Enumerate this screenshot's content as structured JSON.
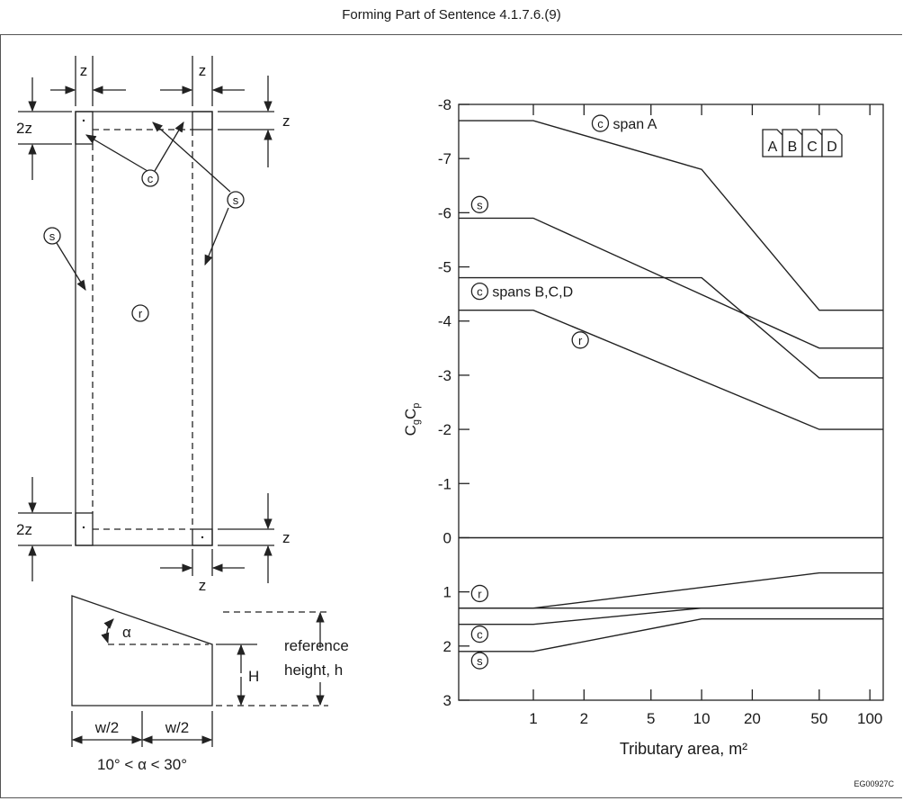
{
  "caption": "Forming Part of Sentence 4.1.7.6.(9)",
  "diagram": {
    "dim_z": "z",
    "dim_2z": "2z",
    "zone_c": "c",
    "zone_s": "s",
    "zone_r": "r",
    "alpha": "α",
    "dim_H": "H",
    "reference_height_line1": "reference",
    "reference_height_line2": "height, h",
    "half_width": "w/2",
    "angle_range": "10° < α < 30°"
  },
  "code": "EG00927C",
  "chart_data": {
    "type": "line",
    "ylabel_main": "C",
    "ylabel_sub1": "g",
    "ylabel_mid": "C",
    "ylabel_sub2": "p",
    "xlabel": "Tributary area, m²",
    "x_scale": "log",
    "xlim": [
      0.36,
      120
    ],
    "ylim": [
      3,
      -8
    ],
    "x_ticks": [
      1,
      2,
      5,
      10,
      20,
      50,
      100
    ],
    "x_tick_labels": [
      "1",
      "2",
      "5",
      "10",
      "20",
      "50",
      "100"
    ],
    "y_ticks": [
      -8,
      -7,
      -6,
      -5,
      -4,
      -3,
      -2,
      -1,
      0,
      1,
      2,
      3
    ],
    "y_tick_labels": [
      "-8",
      "-7",
      "-6",
      "-5",
      "-4",
      "-3",
      "-2",
      "-1",
      "0",
      "1",
      "2",
      "3"
    ],
    "span_boxes": [
      "A",
      "B",
      "C",
      "D"
    ],
    "series": [
      {
        "x": [
          0.36,
          1,
          10,
          50,
          120
        ],
        "y": [
          -7.7,
          -7.7,
          -6.8,
          -4.2,
          -4.2
        ]
      },
      {
        "x": [
          0.36,
          1,
          50,
          120
        ],
        "y": [
          -5.9,
          -5.9,
          -3.5,
          -3.5
        ]
      },
      {
        "x": [
          0.36,
          10,
          50,
          120
        ],
        "y": [
          -4.8,
          -4.8,
          -2.95,
          -2.95
        ]
      },
      {
        "x": [
          0.36,
          1,
          50,
          120
        ],
        "y": [
          -4.2,
          -4.2,
          -2.0,
          -2.0
        ]
      },
      {
        "x": [
          0.36,
          120
        ],
        "y": [
          0,
          0
        ]
      },
      {
        "x": [
          0.36,
          1,
          50,
          120
        ],
        "y": [
          1.3,
          1.3,
          0.65,
          0.65
        ]
      },
      {
        "x": [
          0.36,
          120
        ],
        "y": [
          1.3,
          1.3
        ]
      },
      {
        "x": [
          0.36,
          1,
          10,
          120
        ],
        "y": [
          1.6,
          1.6,
          1.3,
          1.3
        ]
      },
      {
        "x": [
          0.36,
          1,
          10,
          120
        ],
        "y": [
          2.1,
          2.1,
          1.5,
          1.5
        ]
      }
    ],
    "annotations": [
      {
        "marker": "c",
        "text": "span A",
        "x": 2.5,
        "y": -7.65
      },
      {
        "marker": "s",
        "text": "",
        "x": 0.48,
        "y": -6.15
      },
      {
        "marker": "c",
        "text": "spans B,C,D",
        "x": 0.48,
        "y": -4.55
      },
      {
        "marker": "r",
        "text": "",
        "x": 1.9,
        "y": -3.65
      },
      {
        "marker": "r",
        "text": "",
        "x": 0.48,
        "y": 1.03
      },
      {
        "marker": "c",
        "text": "",
        "x": 0.48,
        "y": 1.78
      },
      {
        "marker": "s",
        "text": "",
        "x": 0.48,
        "y": 2.27
      }
    ]
  }
}
